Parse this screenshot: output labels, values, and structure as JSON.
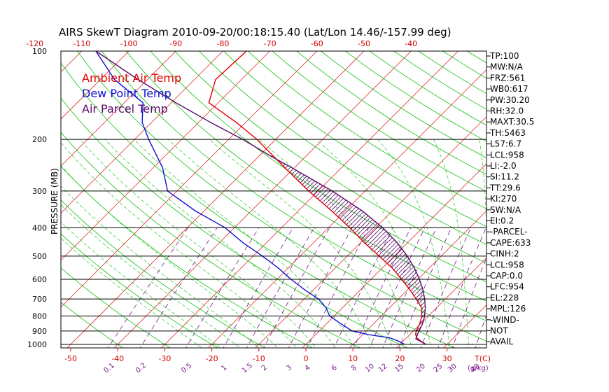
{
  "title": "AIRS SkewT Diagram 2010-09-20/00:18:15.40 (Lat/Lon 14.46/-157.99 deg)",
  "colors": {
    "ambient": "#e00000",
    "dewpoint": "#1010d0",
    "parcel": "#5a0a6a",
    "isotherm": "#e03030",
    "dry_adiabat": "#10c010",
    "moist_adiabat": "#40d040",
    "mixing_ratio": "#7a1a8a",
    "isobar": "#000000"
  },
  "chart_data": {
    "type": "line",
    "title": "AIRS SkewT Diagram 2010-09-20/00:18:15.40 (Lat/Lon 14.46/-157.99 deg)",
    "ylabel": "PRESSURE (MB)",
    "y_scale": "log",
    "y_inverted": true,
    "pressure_ticks": [
      100,
      200,
      300,
      400,
      500,
      600,
      700,
      800,
      900,
      1000
    ],
    "top_temperature_ticks": [
      "-120",
      "-110",
      "-100",
      "-90",
      "-80",
      "-70",
      "-60",
      "-50",
      "-40"
    ],
    "bottom_temperature_ticks": [
      "-50",
      "-40",
      "-30",
      "-20",
      "-10",
      "0",
      "10",
      "20",
      "30"
    ],
    "bottom_axis_label": "T(C)",
    "mixing_ratio_labels": [
      "0.1",
      "0.2",
      "0.5",
      "1",
      "1.5",
      "2",
      "3",
      "4",
      "6",
      "8",
      "10",
      "12",
      "15",
      "20",
      "25",
      "30",
      "40"
    ],
    "mixing_ratio_unit": "(g/kg)",
    "legend": [
      "Ambient Air Temp",
      "Dew Point Temp",
      "Air Parcel Temp"
    ],
    "legend_placement": "top-left",
    "series": [
      {
        "name": "Ambient Air Temp",
        "points": [
          [
            1000,
            25.5
          ],
          [
            975,
            23.8
          ],
          [
            950,
            22.2
          ],
          [
            925,
            21.2
          ],
          [
            900,
            20.6
          ],
          [
            850,
            19.8
          ],
          [
            800,
            18.6
          ],
          [
            750,
            16.8
          ],
          [
            700,
            13.8
          ],
          [
            650,
            10.4
          ],
          [
            600,
            6.5
          ],
          [
            550,
            2.2
          ],
          [
            500,
            -3.2
          ],
          [
            450,
            -9.2
          ],
          [
            400,
            -15.5
          ],
          [
            350,
            -23.0
          ],
          [
            300,
            -32.0
          ],
          [
            250,
            -42.0
          ],
          [
            200,
            -54.0
          ],
          [
            175,
            -62.0
          ],
          [
            150,
            -72.0
          ],
          [
            125,
            -75.5
          ],
          [
            100,
            -75.0
          ]
        ]
      },
      {
        "name": "Dew Point Temp",
        "points": [
          [
            1000,
            21.0
          ],
          [
            975,
            19.0
          ],
          [
            950,
            16.5
          ],
          [
            925,
            11.0
          ],
          [
            900,
            7.0
          ],
          [
            850,
            3.0
          ],
          [
            800,
            -1.0
          ],
          [
            750,
            -3.5
          ],
          [
            700,
            -7.0
          ],
          [
            650,
            -12.0
          ],
          [
            600,
            -17.0
          ],
          [
            550,
            -22.0
          ],
          [
            500,
            -28.0
          ],
          [
            450,
            -35.0
          ],
          [
            400,
            -42.0
          ],
          [
            350,
            -52.0
          ],
          [
            300,
            -62.0
          ],
          [
            250,
            -68.0
          ],
          [
            200,
            -77.0
          ],
          [
            175,
            -82.0
          ],
          [
            150,
            -86.0
          ],
          [
            125,
            -97.0
          ],
          [
            100,
            -107.0
          ]
        ]
      },
      {
        "name": "Air Parcel Temp",
        "points": [
          [
            1000,
            25.5
          ],
          [
            975,
            23.6
          ],
          [
            958,
            22.2
          ],
          [
            925,
            21.6
          ],
          [
            900,
            21.2
          ],
          [
            850,
            20.4
          ],
          [
            800,
            19.2
          ],
          [
            750,
            17.6
          ],
          [
            700,
            15.6
          ],
          [
            650,
            13.2
          ],
          [
            600,
            10.3
          ],
          [
            550,
            6.9
          ],
          [
            500,
            2.8
          ],
          [
            450,
            -2.2
          ],
          [
            400,
            -8.5
          ],
          [
            350,
            -16.5
          ],
          [
            300,
            -27.0
          ],
          [
            250,
            -40.5
          ],
          [
            228,
            -47.5
          ],
          [
            200,
            -57.0
          ],
          [
            175,
            -67.5
          ],
          [
            150,
            -79.0
          ],
          [
            125,
            -92.0
          ],
          [
            100,
            -107.0
          ]
        ]
      }
    ]
  },
  "indices": [
    "TP:100",
    "MW:N/A",
    "FRZ:561",
    "WB0:617",
    "PW:30.20",
    "RH:32.0",
    "MAXT:30.5",
    "TH:5463",
    "L57:6.7",
    "LCL:958",
    "LI:-2.0",
    "SI:11.2",
    "TT:29.6",
    "KI:270",
    "SW:N/A",
    "EI:0.2",
    "-PARCEL-",
    "CAPE:633",
    "CINH:2",
    "LCL:958",
    "CAP:0.0",
    "LFC:954",
    "EL:228",
    "MPL:126",
    "-WIND-",
    "NOT",
    "AVAIL"
  ]
}
